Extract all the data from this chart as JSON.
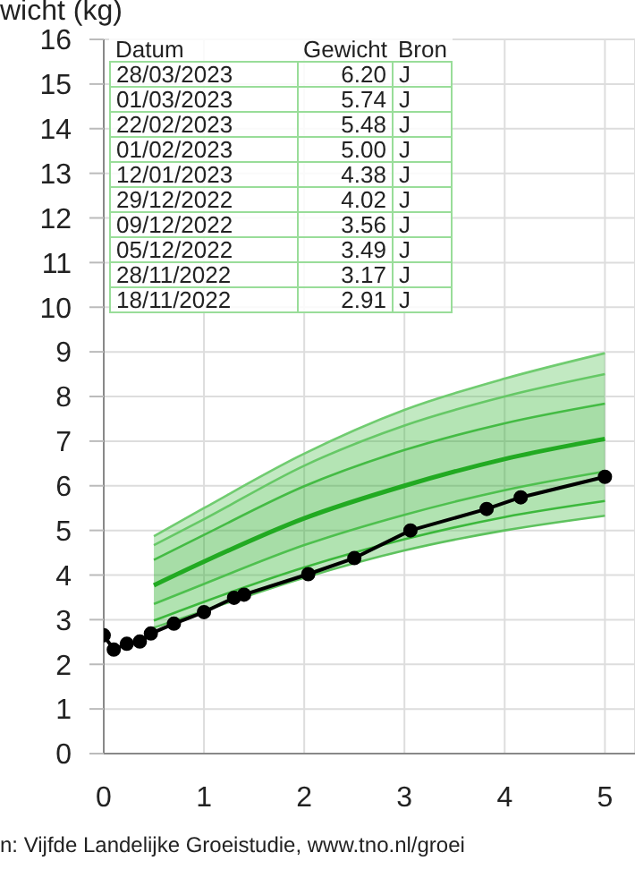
{
  "chart_data": {
    "type": "line",
    "ylabel": "wicht (kg)",
    "xlim": [
      0,
      5.3
    ],
    "xticks": [
      0,
      1,
      2,
      3,
      4,
      5
    ],
    "ylim": [
      0,
      16
    ],
    "yticks": [
      0,
      1,
      2,
      3,
      4,
      5,
      6,
      7,
      8,
      9,
      10,
      11,
      12,
      13,
      14,
      15,
      16
    ],
    "grid": true,
    "series": [
      {
        "color": "#22aa22",
        "x": [
          0.5,
          1,
          2,
          3,
          4,
          5
        ],
        "values": [
          3.77,
          4.3,
          5.27,
          6.0,
          6.6,
          7.05
        ],
        "lower": [
          3.35,
          3.8,
          4.67,
          5.35,
          5.9,
          6.32
        ],
        "upper": [
          4.34,
          4.9,
          5.99,
          6.8,
          7.4,
          7.84
        ]
      },
      {
        "color": "#44bb44",
        "x": [
          0.5,
          1,
          2,
          3,
          4,
          5
        ],
        "values": [
          4.34,
          4.9,
          5.99,
          6.8,
          7.4,
          7.84
        ],
        "lower": [
          4.34,
          4.9,
          5.99,
          6.8,
          7.4,
          7.84
        ],
        "upper": [
          4.67,
          5.25,
          6.45,
          7.35,
          8.0,
          8.5
        ]
      },
      {
        "color": "#3cb83c",
        "x": [
          0.5,
          1,
          2,
          3,
          4,
          5
        ],
        "values": [
          2.98,
          3.4,
          4.17,
          4.8,
          5.3,
          5.66
        ],
        "lower": [
          2.98,
          3.4,
          4.17,
          4.8,
          5.3,
          5.66
        ],
        "upper": [
          3.35,
          3.8,
          4.67,
          5.35,
          5.9,
          6.32
        ]
      },
      {
        "color": "#66c866",
        "x": [
          0.5,
          1,
          2,
          3,
          4,
          5
        ],
        "values": [
          4.67,
          5.25,
          6.45,
          7.35,
          8.0,
          8.5
        ],
        "lower": [
          4.67,
          5.25,
          6.45,
          7.35,
          8.0,
          8.5
        ],
        "upper": [
          4.87,
          5.5,
          6.72,
          7.7,
          8.4,
          8.97
        ]
      },
      {
        "color": "#5ec25e",
        "x": [
          0.5,
          1,
          2,
          3,
          4,
          5
        ],
        "values": [
          2.82,
          3.2,
          3.94,
          4.55,
          5.0,
          5.33
        ],
        "lower": [
          2.82,
          3.2,
          3.94,
          4.55,
          5.0,
          5.33
        ],
        "upper": [
          2.98,
          3.4,
          4.17,
          4.8,
          5.3,
          5.66
        ]
      },
      {
        "color": "#70cc70",
        "x": [
          0.5,
          1,
          2,
          3,
          4,
          5
        ],
        "values": [
          4.87,
          5.5,
          6.72,
          7.7,
          8.4,
          8.97
        ]
      },
      {
        "color": "#4ec04e",
        "x": [
          0.5,
          1,
          2,
          3,
          4,
          5
        ],
        "values": [
          3.35,
          3.8,
          4.67,
          5.35,
          5.9,
          6.32
        ]
      },
      {
        "color": "#000000",
        "marker": "circle",
        "x": [
          0,
          0.1,
          0.23,
          0.36,
          0.47,
          0.7,
          1.0,
          1.3,
          1.4,
          2.04,
          2.5,
          3.06,
          3.82,
          4.16,
          5.0
        ],
        "values": [
          2.65,
          2.33,
          2.46,
          2.51,
          2.69,
          2.91,
          3.17,
          3.49,
          3.56,
          4.02,
          4.38,
          5.0,
          5.48,
          5.74,
          6.2
        ]
      }
    ],
    "annotations": [
      "Datum",
      "Gewicht",
      "Bron",
      "28/03/2023",
      "6.20",
      "J",
      "01/03/2023",
      "5.74",
      "J",
      "22/02/2023",
      "5.48",
      "J",
      "01/02/2023",
      "5.00",
      "J",
      "12/01/2023",
      "4.38",
      "J",
      "29/12/2022",
      "4.02",
      "J",
      "09/12/2022",
      "3.56",
      "J",
      "05/12/2022",
      "3.49",
      "J",
      "28/11/2022",
      "3.17",
      "J",
      "18/11/2022",
      "2.91",
      "J",
      "n: Vijfde Landelijke Groeistudie, www.tno.nl/groei"
    ]
  }
}
